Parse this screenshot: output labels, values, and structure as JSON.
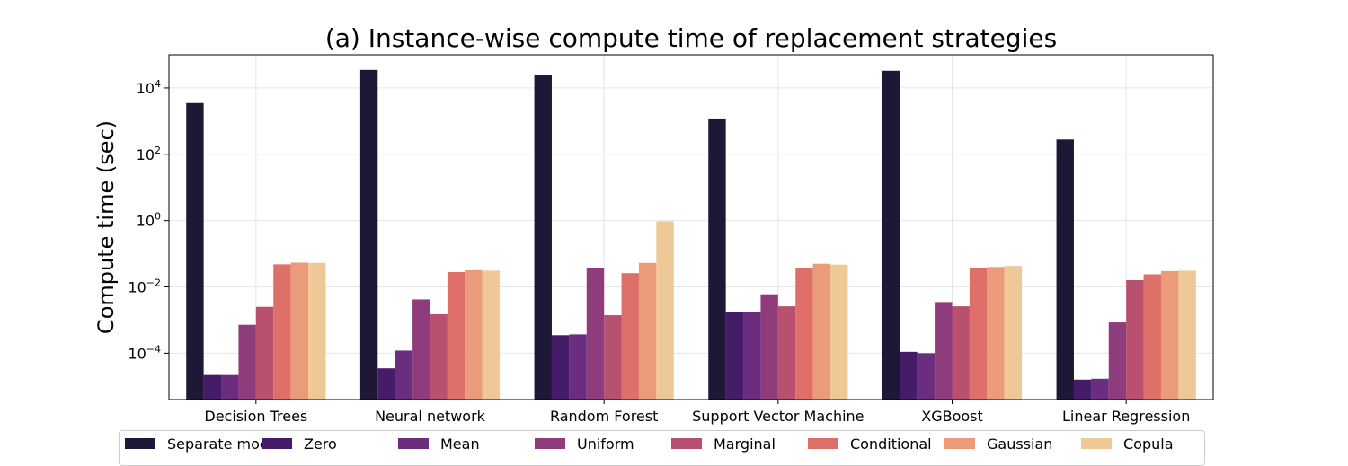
{
  "chart_data": {
    "type": "bar",
    "title": "(a) Instance-wise compute time of replacement strategies",
    "xlabel": "",
    "ylabel": "Compute time (sec)",
    "yscale": "log",
    "ylim": [
      4e-06,
      100000
    ],
    "yticks": [
      {
        "value": 0.0001,
        "base": "10",
        "exp": "−4"
      },
      {
        "value": 0.01,
        "base": "10",
        "exp": "−2"
      },
      {
        "value": 1,
        "base": "10",
        "exp": "0"
      },
      {
        "value": 100,
        "base": "10",
        "exp": "2"
      },
      {
        "value": 10000,
        "base": "10",
        "exp": "4"
      }
    ],
    "grid": true,
    "legend_position": "bottom",
    "categories": [
      "Decision Trees",
      "Neural network",
      "Random Forest",
      "Support Vector Machine",
      "XGBoost",
      "Linear Regression"
    ],
    "series": [
      {
        "name": "Separate models",
        "color": "#1f1736",
        "values": [
          3500,
          35000,
          24000,
          1200,
          33000,
          280
        ]
      },
      {
        "name": "Zero",
        "color": "#441c68",
        "values": [
          2.2e-05,
          3.5e-05,
          0.00035,
          0.0018,
          0.00011,
          1.6e-05
        ]
      },
      {
        "name": "Mean",
        "color": "#6b2d7e",
        "values": [
          2.2e-05,
          0.00012,
          0.00037,
          0.0017,
          0.0001,
          1.7e-05
        ]
      },
      {
        "name": "Uniform",
        "color": "#8f3c7c",
        "values": [
          0.00072,
          0.0042,
          0.038,
          0.006,
          0.0035,
          0.00085
        ]
      },
      {
        "name": "Marginal",
        "color": "#b8506f",
        "values": [
          0.0025,
          0.0015,
          0.0014,
          0.0026,
          0.0026,
          0.016
        ]
      },
      {
        "name": "Conditional",
        "color": "#de7069",
        "values": [
          0.048,
          0.028,
          0.026,
          0.036,
          0.036,
          0.024
        ]
      },
      {
        "name": "Gaussian",
        "color": "#eb9b79",
        "values": [
          0.054,
          0.032,
          0.053,
          0.05,
          0.04,
          0.03
        ]
      },
      {
        "name": "Copula",
        "color": "#efc897",
        "values": [
          0.053,
          0.031,
          0.95,
          0.047,
          0.043,
          0.031
        ]
      }
    ]
  }
}
